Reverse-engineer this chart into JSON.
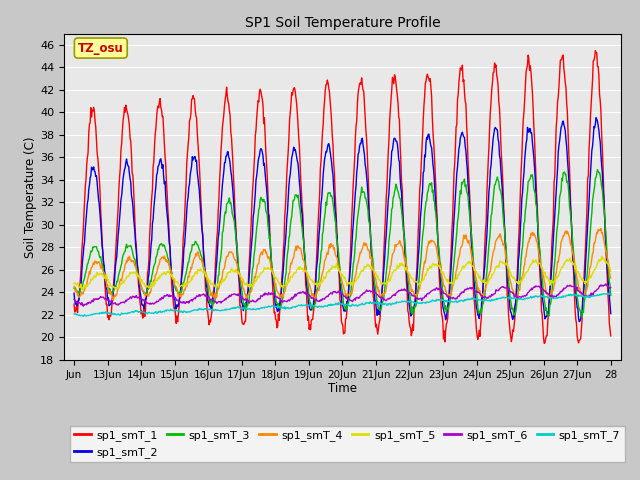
{
  "title": "SP1 Soil Temperature Profile",
  "xlabel": "Time",
  "ylabel": "Soil Temperature (C)",
  "ylim": [
    18,
    47
  ],
  "xtick_labels": [
    "Jun",
    "13Jun",
    "14Jun",
    "15Jun",
    "16Jun",
    "17Jun",
    "18Jun",
    "19Jun",
    "20Jun",
    "21Jun",
    "22Jun",
    "23Jun",
    "24Jun",
    "25Jun",
    "26Jun",
    "27Jun",
    "28"
  ],
  "series_colors": {
    "sp1_smT_1": "#FF0000",
    "sp1_smT_2": "#0000EE",
    "sp1_smT_3": "#00BB00",
    "sp1_smT_4": "#FF8800",
    "sp1_smT_5": "#DDDD00",
    "sp1_smT_6": "#AA00CC",
    "sp1_smT_7": "#00CCCC"
  },
  "annotation_text": "TZ_osu",
  "annotation_color": "#CC0000",
  "annotation_bg": "#FFFF99",
  "fig_bg": "#C8C8C8",
  "plot_bg": "#E8E8E8"
}
